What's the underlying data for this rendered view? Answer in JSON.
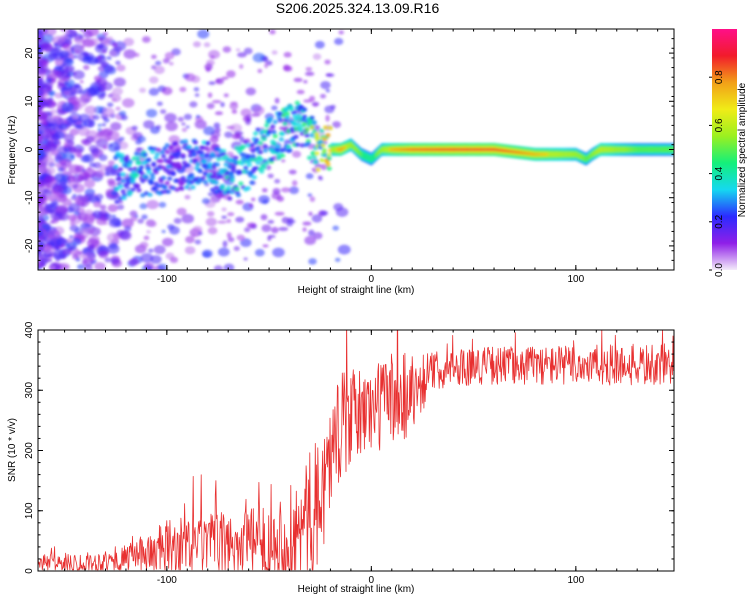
{
  "title": "S206.2025.324.13.09.R16",
  "chart_data": [
    {
      "type": "heatmap",
      "name": "spectrogram",
      "xlabel": "Height of straight line (km)",
      "ylabel": "Frequency (Hz)",
      "xlim": [
        -163,
        148
      ],
      "ylim": [
        -25,
        25
      ],
      "xticks": [
        -100,
        0,
        100
      ],
      "yticks": [
        -20,
        -10,
        0,
        10,
        20
      ],
      "colorbar": {
        "label": "Normalized spectral amplitude",
        "range": [
          0.0,
          1.0
        ],
        "ticks": [
          "0.0",
          "0.2",
          "0.4",
          "0.6",
          "0.8"
        ],
        "colormap": [
          "#f4ecfa",
          "#8f1fe8",
          "#2b2bff",
          "#15d8f0",
          "#14f07a",
          "#9bf020",
          "#f0ec17",
          "#f2a018",
          "#f21b2b",
          "#ff0f88"
        ]
      },
      "ridge": {
        "x": [
          -125,
          -115,
          -100,
          -90,
          -80,
          -70,
          -60,
          -50,
          -40,
          -35,
          -30,
          -25,
          -20,
          -15,
          -10,
          -5,
          0,
          5,
          10,
          20,
          40,
          60,
          80,
          100,
          105,
          108,
          112,
          120,
          130,
          148
        ],
        "frequency": [
          -6,
          -5,
          -4,
          -3,
          -3,
          -6,
          -3,
          2,
          4,
          5,
          3,
          0,
          0,
          0,
          1,
          -1,
          -2,
          0,
          0,
          0,
          0,
          0,
          -1,
          -1,
          -2,
          -1,
          0,
          0,
          0,
          0
        ],
        "amplitude": [
          0.25,
          0.3,
          0.2,
          0.22,
          0.25,
          0.3,
          0.3,
          0.35,
          0.35,
          0.3,
          0.4,
          0.5,
          0.6,
          0.8,
          0.6,
          0.5,
          0.45,
          0.6,
          0.75,
          0.85,
          0.9,
          0.9,
          0.75,
          0.6,
          0.5,
          0.55,
          0.7,
          0.6,
          0.5,
          0.5
        ]
      }
    },
    {
      "type": "line",
      "name": "snr",
      "xlabel": "Height of straight line (km)",
      "ylabel": "SNR (10 * v/v)",
      "xlim": [
        -163,
        148
      ],
      "ylim": [
        0,
        400
      ],
      "xticks": [
        -100,
        0,
        100
      ],
      "yticks": [
        0,
        100,
        200,
        300,
        400
      ],
      "color": "#e83030",
      "trend": {
        "x": [
          -163,
          -140,
          -125,
          -115,
          -100,
          -80,
          -60,
          -45,
          -35,
          -25,
          -20,
          -15,
          -10,
          -5,
          0,
          5,
          10,
          15,
          20,
          30,
          40,
          60,
          100,
          148
        ],
        "y": [
          15,
          15,
          18,
          28,
          42,
          48,
          52,
          55,
          70,
          130,
          200,
          250,
          260,
          270,
          275,
          285,
          300,
          300,
          305,
          335,
          342,
          345,
          345,
          345
        ]
      },
      "noise": {
        "x": [
          -163,
          -120,
          -100,
          -60,
          -45,
          -30,
          -15,
          0,
          15,
          30,
          60,
          148
        ],
        "amplitude": [
          18,
          25,
          60,
          70,
          100,
          140,
          110,
          90,
          110,
          40,
          40,
          45
        ]
      }
    }
  ]
}
